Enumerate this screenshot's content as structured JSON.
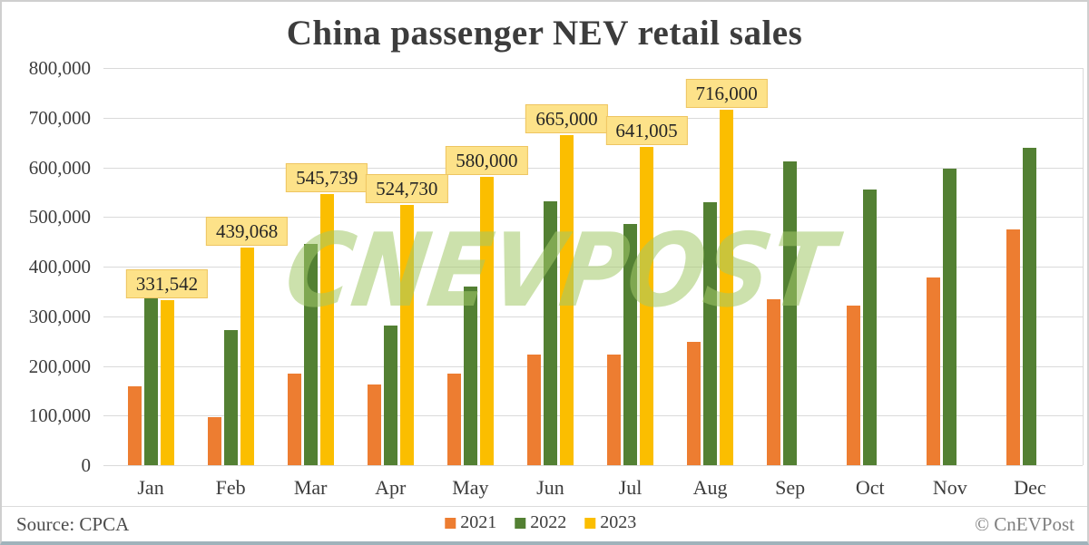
{
  "watermark": "CNEVPOST",
  "footer": {
    "source": "Source: CPCA",
    "copyright": "© CnEVPost"
  },
  "chart_data": {
    "type": "bar",
    "title": "China passenger NEV retail sales",
    "categories": [
      "Jan",
      "Feb",
      "Mar",
      "Apr",
      "May",
      "Jun",
      "Jul",
      "Aug",
      "Sep",
      "Oct",
      "Nov",
      "Dec"
    ],
    "series": [
      {
        "name": "2021",
        "color": "#ED7D31",
        "values": [
          158000,
          97000,
          185000,
          163000,
          185000,
          223000,
          222000,
          249000,
          334000,
          321000,
          378000,
          475000
        ]
      },
      {
        "name": "2022",
        "color": "#538033",
        "values": [
          347000,
          272000,
          445000,
          282000,
          360000,
          532000,
          486000,
          529000,
          611000,
          556000,
          598000,
          640000
        ]
      },
      {
        "name": "2023",
        "color": "#FBBE00",
        "values": [
          331542,
          439068,
          545739,
          524730,
          580000,
          665000,
          641005,
          716000,
          null,
          null,
          null,
          null
        ],
        "data_labels": [
          "331,542",
          "439,068",
          "545,739",
          "524,730",
          "580,000",
          "665,000",
          "641,005",
          "716,000",
          null,
          null,
          null,
          null
        ]
      }
    ],
    "ylim": [
      0,
      800000
    ],
    "yticks": [
      "800,000",
      "700,000",
      "600,000",
      "500,000",
      "400,000",
      "300,000",
      "200,000",
      "100,000",
      "0"
    ],
    "xlabel": "",
    "ylabel": "",
    "grid": true,
    "legend_position": "bottom",
    "data_label_style": {
      "background": "#FDE289",
      "border": "#EEC561",
      "text": "#262626"
    },
    "watermark_color": "#A4C96A"
  }
}
